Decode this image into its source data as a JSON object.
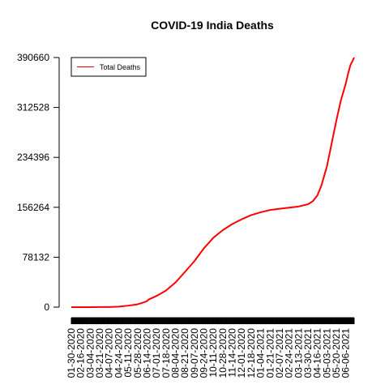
{
  "chart_data": {
    "type": "line",
    "title": "COVID-19 India Deaths",
    "xlabel": "",
    "ylabel": "",
    "yticks": [
      0,
      78132,
      156264,
      234396,
      312528,
      390660
    ],
    "ylim": [
      0,
      390660
    ],
    "xrange": [
      "01-30-2020",
      "06-21-2021"
    ],
    "xtick_labels": [
      "01-30-2020",
      "02-16-2020",
      "03-04-2020",
      "03-21-2020",
      "04-07-2020",
      "04-24-2020",
      "05-11-2020",
      "05-28-2020",
      "06-14-2020",
      "07-01-2020",
      "07-18-2020",
      "08-04-2020",
      "08-21-2020",
      "09-07-2020",
      "09-24-2020",
      "10-11-2020",
      "10-28-2020",
      "11-14-2020",
      "12-01-2020",
      "12-18-2020",
      "01-04-2021",
      "01-21-2021",
      "02-07-2021",
      "02-24-2021",
      "03-13-2021",
      "03-30-2021",
      "04-16-2021",
      "05-03-2021",
      "05-20-2021",
      "06-06-2021"
    ],
    "legend": {
      "position": "top-left",
      "entries": [
        {
          "name": "Total Deaths",
          "color": "#ff0000"
        }
      ]
    },
    "series": [
      {
        "name": "Total Deaths",
        "color": "#ff0000",
        "points": [
          [
            "01-30-2020",
            0
          ],
          [
            "03-04-2020",
            0
          ],
          [
            "03-21-2020",
            100
          ],
          [
            "04-07-2020",
            200
          ],
          [
            "04-24-2020",
            800
          ],
          [
            "05-11-2020",
            2300
          ],
          [
            "05-28-2020",
            4500
          ],
          [
            "06-10-2020",
            8000
          ],
          [
            "06-14-2020",
            9500
          ],
          [
            "06-17-2020",
            12000
          ],
          [
            "07-01-2020",
            17500
          ],
          [
            "07-18-2020",
            26000
          ],
          [
            "08-04-2020",
            38500
          ],
          [
            "08-21-2020",
            55000
          ],
          [
            "09-07-2020",
            72000
          ],
          [
            "09-24-2020",
            92000
          ],
          [
            "10-11-2020",
            108500
          ],
          [
            "10-28-2020",
            120500
          ],
          [
            "11-14-2020",
            130000
          ],
          [
            "12-01-2020",
            137500
          ],
          [
            "12-18-2020",
            144000
          ],
          [
            "01-04-2021",
            148500
          ],
          [
            "01-21-2021",
            152000
          ],
          [
            "02-07-2021",
            154000
          ],
          [
            "02-24-2021",
            155700
          ],
          [
            "03-13-2021",
            157500
          ],
          [
            "03-30-2021",
            161000
          ],
          [
            "04-08-2021",
            166000
          ],
          [
            "04-16-2021",
            175000
          ],
          [
            "04-23-2021",
            190000
          ],
          [
            "05-03-2021",
            220000
          ],
          [
            "05-12-2021",
            258000
          ],
          [
            "05-20-2021",
            292000
          ],
          [
            "05-28-2021",
            323000
          ],
          [
            "06-06-2021",
            350000
          ],
          [
            "06-10-2021",
            365000
          ],
          [
            "06-14-2021",
            378000
          ],
          [
            "06-21-2021",
            390660
          ]
        ]
      }
    ]
  }
}
